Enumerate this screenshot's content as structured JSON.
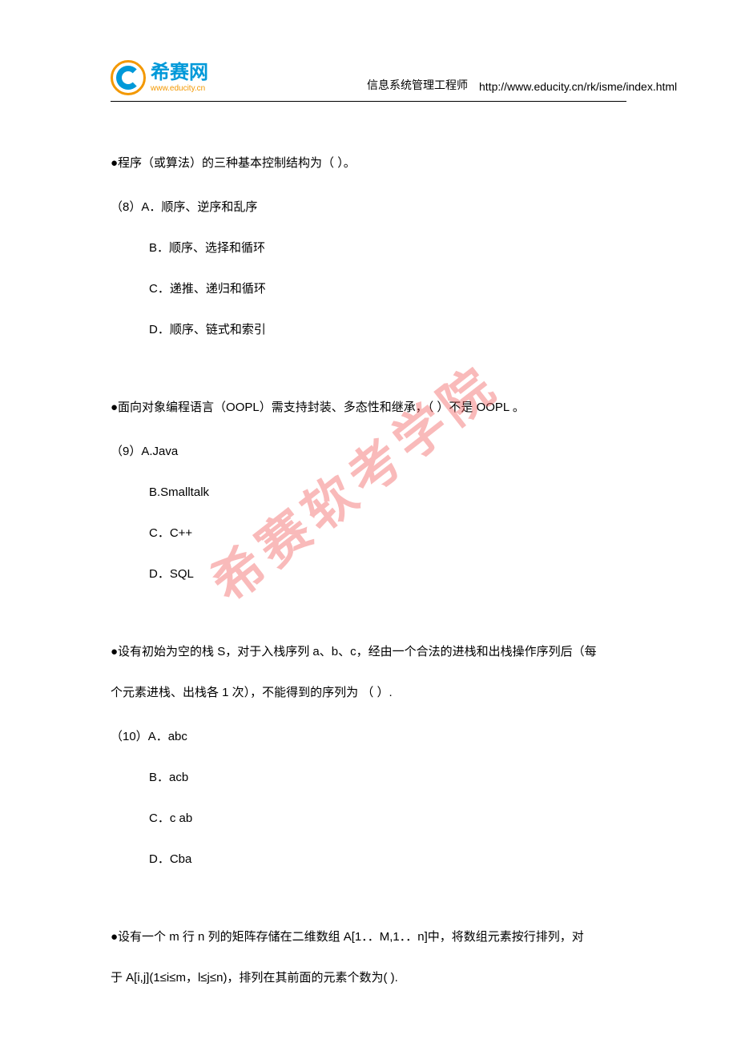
{
  "header": {
    "logo_cn": "希赛网",
    "logo_url": "www.educity.cn",
    "subtitle": "信息系统管理工程师",
    "page_url": "http://www.educity.cn/rk/isme/index.html"
  },
  "watermark": "希赛软考学院",
  "questions": {
    "q8": {
      "stem": "●程序（或算法）的三种基本控制结构为（    ）。",
      "number_label": "（8）",
      "opt_a": "A．顺序、逆序和乱序",
      "opt_b": "B．顺序、选择和循环",
      "opt_c": "C．递推、递归和循环",
      "opt_d": "D．顺序、链式和索引"
    },
    "q9": {
      "stem": "●面向对象编程语言（OOPL）需支持封装、多态性和继承，（    ）不是 OOPL 。",
      "number_label": "（9）",
      "opt_a": "A.Java",
      "opt_b": "B.Smalltalk",
      "opt_c": "C．C++",
      "opt_d": "D．SQL"
    },
    "q10": {
      "stem_line1": "●设有初始为空的栈 S，对于入栈序列 a、b、c，经由一个合法的进栈和出栈操作序列后（每",
      "stem_line2": "个元素进栈、出栈各 1 次），不能得到的序列为  （  ）.",
      "number_label": "（10）",
      "opt_a": "A．abc",
      "opt_b": "B．acb",
      "opt_c": "C．c ab",
      "opt_d": "D．Cba"
    },
    "q11": {
      "stem_line1": "●设有一个 m 行 n 列的矩阵存储在二维数组 A[1．．M,1．．n]中，将数组元素按行排列，对",
      "stem_line2": "于 A[i,j](1≤i≤m，l≤j≤n)，排列在其前面的元素个数为(   )."
    }
  }
}
